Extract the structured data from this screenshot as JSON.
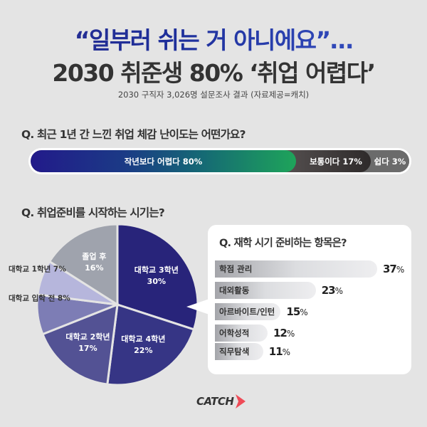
{
  "header": {
    "title_line1": "“일부러 쉬는 거 아니에요”…",
    "title_line2": "2030 취준생 80% ‘취업 어렵다’",
    "subtitle": "2030 구직자 3,026명 설문조사 결과 (자료제공=캐치)"
  },
  "q1": {
    "question": "Q. 최근 1년 간 느낀 취업 체감 난이도는 어떤가요?",
    "segments": [
      {
        "label": "작년보다 어렵다 80%",
        "value": 80,
        "color": "#1e3a88"
      },
      {
        "label": "보통이다 17%",
        "value": 17,
        "color": "#3f3a3a"
      },
      {
        "label": "쉽다 3%",
        "value": 3,
        "color": "#6b6b6b"
      }
    ]
  },
  "q2": {
    "question": "Q. 취업준비를 시작하는 시기는?",
    "slices": [
      {
        "name": "대학교 3학년",
        "pct": "30%",
        "value": 30,
        "color": "#28247a"
      },
      {
        "name": "대학교 4학년",
        "pct": "22%",
        "value": 22,
        "color": "#363585"
      },
      {
        "name": "대학교 2학년",
        "pct": "17%",
        "value": 17,
        "color": "#535294"
      },
      {
        "name": "대학교 입학 전",
        "pct": "8%",
        "value": 8,
        "color": "#7d7db5"
      },
      {
        "name": "대학교 1학년",
        "pct": "7%",
        "value": 7,
        "color": "#b6b6dc"
      },
      {
        "name": "졸업 후",
        "pct": "16%",
        "value": 16,
        "color": "#9fa3ad"
      }
    ],
    "outer_labels": {
      "first_year": "대학교 1학년 7%",
      "before_entry": "대학교 입학 전 8%"
    }
  },
  "q3": {
    "question": "Q. 재학 시기 준비하는 항목은?",
    "items": [
      {
        "label": "학점 관리",
        "value": 37,
        "num": "37",
        "unit": "%"
      },
      {
        "label": "대외활동",
        "value": 23,
        "num": "23",
        "unit": "%"
      },
      {
        "label": "아르바이트/인턴",
        "value": 15,
        "num": "15",
        "unit": "%"
      },
      {
        "label": "어학성적",
        "value": 12,
        "num": "12",
        "unit": "%"
      },
      {
        "label": "직무탐색",
        "value": 11,
        "num": "11",
        "unit": "%"
      }
    ]
  },
  "footer": {
    "logo_text": "CATCH",
    "logo_color": "#ef4b57"
  },
  "chart_data": [
    {
      "type": "bar",
      "title": "Q. 최근 1년 간 느낀 취업 체감 난이도는 어떤가요?",
      "orientation": "horizontal-stacked",
      "categories": [
        "작년보다 어렵다",
        "보통이다",
        "쉽다"
      ],
      "values": [
        80,
        17,
        3
      ],
      "unit": "%"
    },
    {
      "type": "pie",
      "title": "Q. 취업준비를 시작하는 시기는?",
      "categories": [
        "대학교 3학년",
        "대학교 4학년",
        "대학교 2학년",
        "대학교 입학 전",
        "대학교 1학년",
        "졸업 후"
      ],
      "values": [
        30,
        22,
        17,
        8,
        7,
        16
      ],
      "unit": "%"
    },
    {
      "type": "bar",
      "title": "Q. 재학 시기 준비하는 항목은?",
      "orientation": "horizontal",
      "categories": [
        "학점 관리",
        "대외활동",
        "아르바이트/인턴",
        "어학성적",
        "직무탐색"
      ],
      "values": [
        37,
        23,
        15,
        12,
        11
      ],
      "unit": "%"
    }
  ]
}
